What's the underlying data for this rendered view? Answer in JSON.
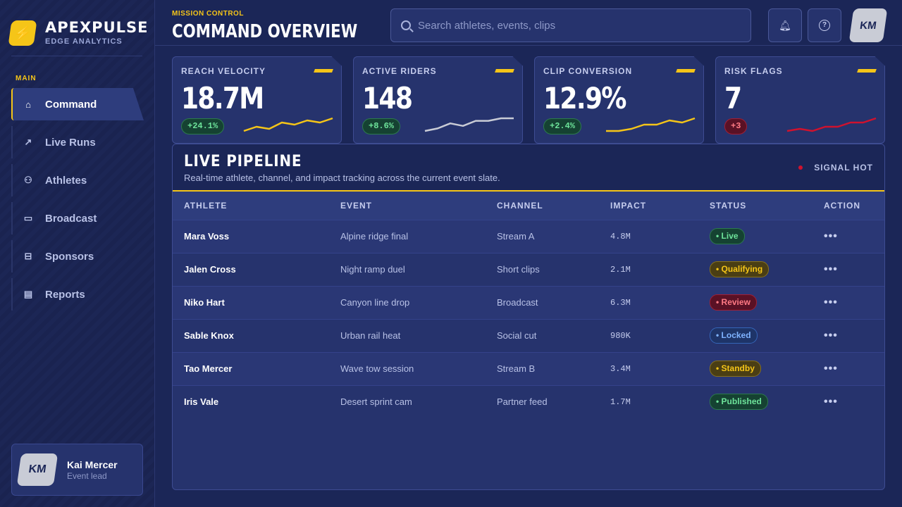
{
  "brand": {
    "name": "APEXPULSE",
    "sub": "EDGE ANALYTICS"
  },
  "sidebar": {
    "section": "MAIN",
    "items": [
      {
        "label": "Command",
        "icon": "home-icon",
        "active": true
      },
      {
        "label": "Live Runs",
        "icon": "arrow-up-right-icon"
      },
      {
        "label": "Athletes",
        "icon": "user-icon"
      },
      {
        "label": "Broadcast",
        "icon": "monitor-icon"
      },
      {
        "label": "Sponsors",
        "icon": "card-icon"
      },
      {
        "label": "Reports",
        "icon": "document-icon"
      }
    ],
    "user": {
      "initials": "KM",
      "name": "Kai Mercer",
      "role": "Event lead"
    }
  },
  "header": {
    "kicker": "MISSION CONTROL",
    "title": "COMMAND OVERVIEW",
    "search_placeholder": "Search athletes, events, clips",
    "avatar_initials": "KM"
  },
  "kpis": [
    {
      "label": "REACH VELOCITY",
      "value": "18.7M",
      "delta": "+24.1%",
      "trend": "up",
      "spark_color": "#f5c518",
      "spark": [
        3,
        5,
        4,
        7,
        6,
        8,
        7,
        9
      ]
    },
    {
      "label": "ACTIVE RIDERS",
      "value": "148",
      "delta": "+8.6%",
      "trend": "up",
      "spark_color": "#c9ccd6",
      "spark": [
        3,
        4,
        6,
        5,
        7,
        7,
        8,
        8
      ]
    },
    {
      "label": "CLIP CONVERSION",
      "value": "12.9%",
      "delta": "+2.4%",
      "trend": "up",
      "spark_color": "#f5c518",
      "spark": [
        4,
        4,
        5,
        7,
        7,
        9,
        8,
        10
      ]
    },
    {
      "label": "RISK FLAGS",
      "value": "7",
      "delta": "+3",
      "trend": "down",
      "spark_color": "#d0122e",
      "spark": [
        3,
        4,
        3,
        5,
        5,
        7,
        7,
        9
      ]
    }
  ],
  "pipeline": {
    "title": "LIVE PIPELINE",
    "subtitle": "Real-time athlete, channel, and impact tracking across the current event slate.",
    "signal": "SIGNAL HOT",
    "columns": [
      "ATHLETE",
      "EVENT",
      "CHANNEL",
      "IMPACT",
      "STATUS",
      "ACTION"
    ],
    "rows": [
      {
        "athlete": "Mara Voss",
        "event": "Alpine ridge final",
        "channel": "Stream A",
        "impact": "4.8M",
        "status": "Live",
        "tone": "green"
      },
      {
        "athlete": "Jalen Cross",
        "event": "Night ramp duel",
        "channel": "Short clips",
        "impact": "2.1M",
        "status": "Qualifying",
        "tone": "yellow"
      },
      {
        "athlete": "Niko Hart",
        "event": "Canyon line drop",
        "channel": "Broadcast",
        "impact": "6.3M",
        "status": "Review",
        "tone": "red"
      },
      {
        "athlete": "Sable Knox",
        "event": "Urban rail heat",
        "channel": "Social cut",
        "impact": "980K",
        "status": "Locked",
        "tone": "blue"
      },
      {
        "athlete": "Tao Mercer",
        "event": "Wave tow session",
        "channel": "Stream B",
        "impact": "3.4M",
        "status": "Standby",
        "tone": "yellow"
      },
      {
        "athlete": "Iris Vale",
        "event": "Desert sprint cam",
        "channel": "Partner feed",
        "impact": "1.7M",
        "status": "Published",
        "tone": "green"
      }
    ],
    "action_glyph": "•••"
  }
}
